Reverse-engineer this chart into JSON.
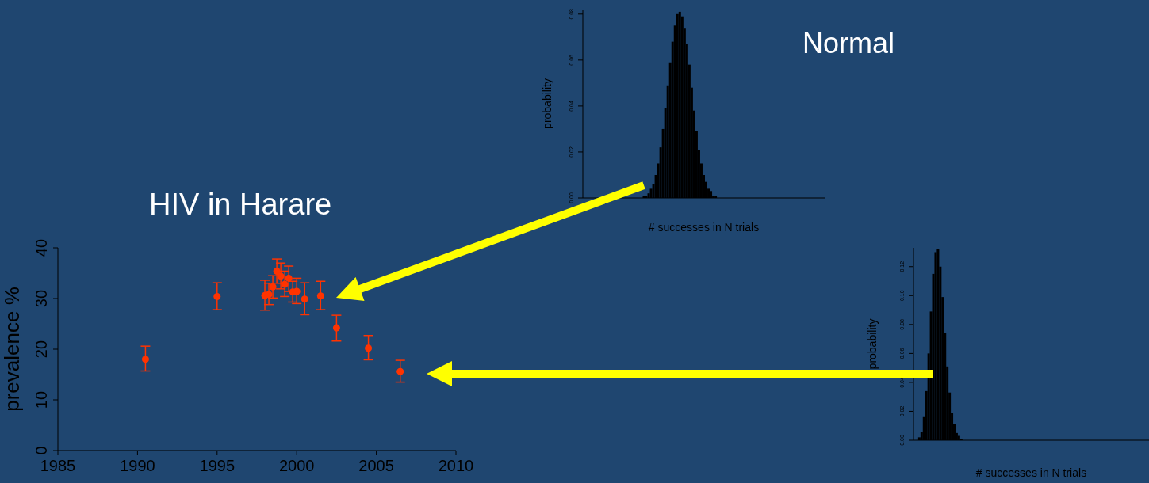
{
  "chart_data": [
    {
      "type": "scatter",
      "title": "HIV in Harare",
      "ylabel": "prevalence %",
      "color": "#ff3300",
      "marker": "circle",
      "x": [
        1990.5,
        1995.0,
        1998.0,
        1998.25,
        1998.5,
        1998.75,
        1999.0,
        1999.25,
        1999.5,
        1999.75,
        2000.0,
        2000.5,
        2001.5,
        2002.5,
        2004.5,
        2006.5
      ],
      "values": [
        18.0,
        30.4,
        30.6,
        30.8,
        32.3,
        35.4,
        34.4,
        32.8,
        34.0,
        31.3,
        31.4,
        29.9,
        30.5,
        24.2,
        20.2,
        15.6
      ],
      "errors": [
        [
          15.7,
          20.6
        ],
        [
          27.8,
          33.1
        ],
        [
          27.7,
          33.6
        ],
        [
          28.8,
          33.0
        ],
        [
          30.1,
          34.5
        ],
        [
          33.0,
          37.8
        ],
        [
          31.9,
          37.0
        ],
        [
          30.4,
          35.4
        ],
        [
          31.4,
          36.4
        ],
        [
          29.3,
          33.4
        ],
        [
          29.0,
          34.0
        ],
        [
          26.8,
          33.1
        ],
        [
          27.8,
          33.4
        ],
        [
          21.6,
          26.7
        ],
        [
          17.9,
          22.7
        ],
        [
          13.5,
          17.8
        ]
      ],
      "xlim": [
        1985,
        2010
      ],
      "xticks": [
        1985,
        1990,
        1995,
        2000,
        2005,
        2010
      ],
      "ylim": [
        0,
        40
      ],
      "yticks": [
        0,
        10,
        20,
        30,
        40
      ]
    },
    {
      "type": "bar",
      "title": "Normal",
      "xlabel": "# successes in N trials",
      "ylabel": "probability",
      "color": "#000000",
      "categories": [
        null,
        null,
        null,
        null,
        null,
        null,
        null,
        null,
        null,
        null,
        null,
        null,
        null,
        null,
        null,
        null,
        null,
        null,
        null,
        null,
        null,
        null,
        null,
        null,
        null,
        null,
        null,
        null,
        null,
        null,
        null,
        null,
        null,
        null,
        null,
        null,
        null,
        null,
        null,
        null,
        null,
        null,
        null,
        null,
        null,
        null,
        null,
        null,
        null,
        null,
        null,
        null,
        null,
        null,
        null,
        null,
        null,
        null,
        null,
        null,
        null,
        null,
        null,
        null,
        null,
        null,
        null,
        null,
        null,
        null,
        null,
        null,
        null,
        null,
        null,
        null,
        null,
        null,
        null,
        null,
        null,
        null,
        null,
        null,
        null,
        null,
        null,
        null,
        null,
        null,
        null,
        null,
        null,
        null,
        null,
        null,
        null,
        null,
        null,
        null,
        null
      ],
      "values": [
        0,
        0,
        0,
        0,
        0,
        0,
        0,
        0,
        0,
        0,
        0,
        0,
        0,
        0,
        0,
        0,
        0,
        0,
        0,
        0,
        0,
        0,
        0,
        0,
        0,
        0.001,
        0.001,
        0.002,
        0.004,
        0.006,
        0.01,
        0.015,
        0.022,
        0.03,
        0.039,
        0.049,
        0.059,
        0.068,
        0.075,
        0.08,
        0.081,
        0.079,
        0.074,
        0.067,
        0.058,
        0.048,
        0.038,
        0.029,
        0.021,
        0.015,
        0.01,
        0.007,
        0.004,
        0.003,
        0.001,
        0.001,
        0,
        0,
        0,
        0,
        0,
        0,
        0,
        0,
        0,
        0,
        0,
        0,
        0,
        0,
        0,
        0,
        0,
        0,
        0,
        0,
        0,
        0,
        0,
        0,
        0,
        0,
        0,
        0,
        0,
        0,
        0,
        0,
        0,
        0,
        0,
        0,
        0,
        0,
        0,
        0,
        0,
        0,
        0,
        0,
        0
      ],
      "ylim": [
        0,
        0.082
      ],
      "yticks": [
        {
          "value": 0,
          "label": "0.00"
        },
        {
          "value": 0.02,
          "label": "0.02"
        },
        {
          "value": 0.04,
          "label": "0.04"
        },
        {
          "value": 0.06,
          "label": "0.06"
        },
        {
          "value": 0.08,
          "label": "0.08"
        }
      ]
    },
    {
      "type": "bar",
      "xlabel": "# successes in N trials",
      "ylabel": "probability",
      "color": "#000000",
      "categories": [
        null,
        null,
        null,
        null,
        null,
        null,
        null,
        null,
        null,
        null,
        null,
        null,
        null,
        null,
        null,
        null,
        null,
        null,
        null,
        null,
        null,
        null,
        null,
        null,
        null,
        null,
        null,
        null,
        null,
        null,
        null,
        null,
        null,
        null,
        null,
        null,
        null,
        null,
        null,
        null,
        null,
        null,
        null,
        null,
        null,
        null,
        null,
        null,
        null,
        null,
        null,
        null,
        null,
        null,
        null,
        null,
        null,
        null,
        null,
        null,
        null,
        null,
        null,
        null,
        null,
        null,
        null,
        null,
        null,
        null,
        null,
        null,
        null,
        null,
        null,
        null,
        null,
        null,
        null,
        null,
        null,
        null,
        null,
        null,
        null,
        null,
        null,
        null,
        null,
        null,
        null,
        null,
        null,
        null,
        null,
        null,
        null,
        null,
        null,
        null,
        null
      ],
      "values": [
        0,
        0,
        0.002,
        0.006,
        0.016,
        0.034,
        0.06,
        0.089,
        0.115,
        0.13,
        0.132,
        0.12,
        0.099,
        0.074,
        0.051,
        0.033,
        0.019,
        0.011,
        0.005,
        0.003,
        0.001,
        0,
        0,
        0,
        0,
        0,
        0,
        0,
        0,
        0,
        0,
        0,
        0,
        0,
        0,
        0,
        0,
        0,
        0,
        0,
        0,
        0,
        0,
        0,
        0,
        0,
        0,
        0,
        0,
        0,
        0,
        0,
        0,
        0,
        0,
        0,
        0,
        0,
        0,
        0,
        0,
        0,
        0,
        0,
        0,
        0,
        0,
        0,
        0,
        0,
        0,
        0,
        0,
        0,
        0,
        0,
        0,
        0,
        0,
        0,
        0,
        0,
        0,
        0,
        0,
        0,
        0,
        0,
        0,
        0,
        0,
        0,
        0,
        0,
        0,
        0,
        0,
        0,
        0,
        0,
        0
      ],
      "ylim": [
        0,
        0.133
      ],
      "yticks": [
        {
          "value": 0,
          "label": "0.00"
        },
        {
          "value": 0.02,
          "label": "0.02"
        },
        {
          "value": 0.04,
          "label": "0.04"
        },
        {
          "value": 0.06,
          "label": "0.06"
        },
        {
          "value": 0.08,
          "label": "0.08"
        },
        {
          "value": 0.1,
          "label": "0.10"
        },
        {
          "value": 0.12,
          "label": "0.12"
        }
      ]
    }
  ]
}
